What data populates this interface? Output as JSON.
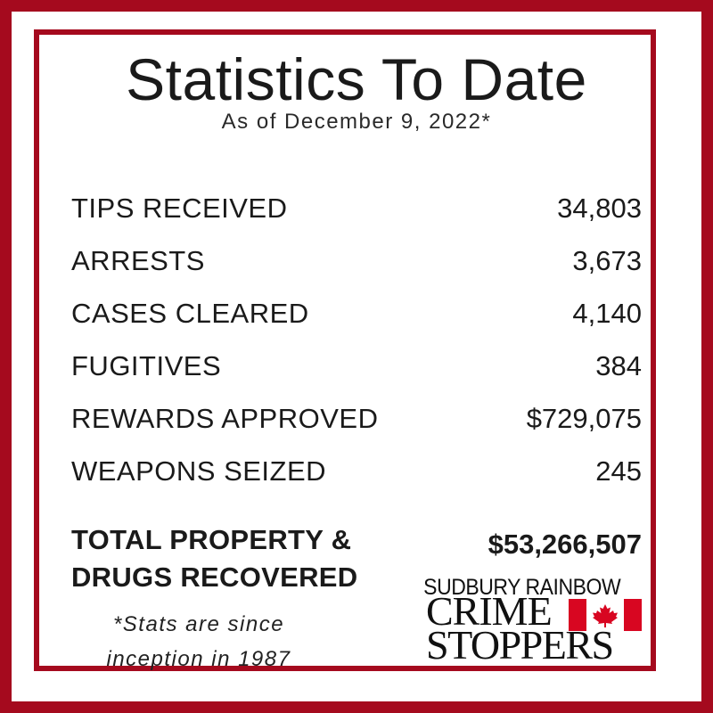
{
  "title": "Statistics To Date",
  "subtitle": "As of December 9, 2022*",
  "stats": [
    {
      "label": "TIPS RECEIVED",
      "value": "34,803"
    },
    {
      "label": "ARRESTS",
      "value": "3,673"
    },
    {
      "label": "CASES CLEARED",
      "value": "4,140"
    },
    {
      "label": "FUGITIVES",
      "value": "384"
    },
    {
      "label": "REWARDS APPROVED",
      "value": "$729,075"
    },
    {
      "label": "WEAPONS SEIZED",
      "value": "245"
    }
  ],
  "total": {
    "label_line1": "TOTAL PROPERTY &",
    "label_line2": "DRUGS RECOVERED",
    "value": "$53,266,507"
  },
  "note": {
    "line1": "*Stats are since",
    "line2": "inception in 1987"
  },
  "logo": {
    "top": "SUDBURY RAINBOW",
    "crime": "CRIME",
    "stoppers": "STOPPERS",
    "flag_icon": "canada-flag-icon"
  },
  "colors": {
    "border": "#a50a1e",
    "flag_red": "#d80621"
  }
}
